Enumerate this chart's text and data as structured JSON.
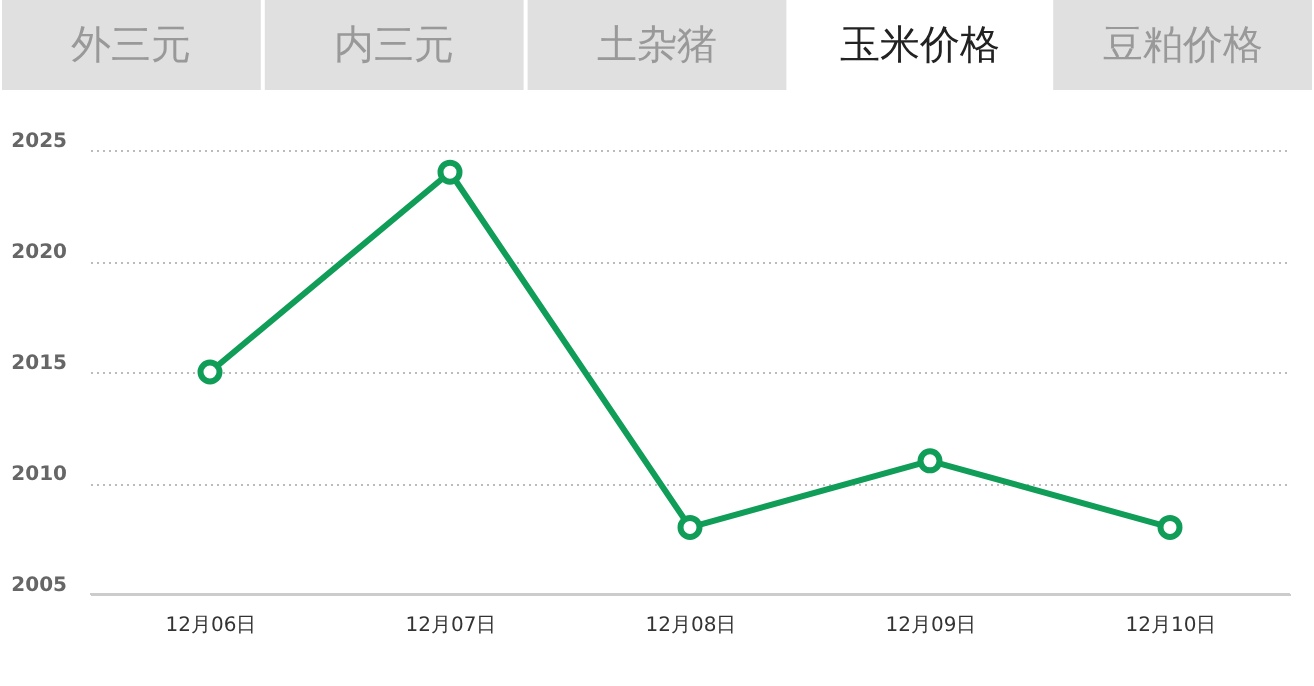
{
  "chart_data": {
    "type": "line",
    "annotations": [
      "外三元",
      "内三元",
      "土杂猪",
      "玉米价格",
      "豆粕价格"
    ],
    "categories": [
      "12月06日",
      "12月07日",
      "12月08日",
      "12月09日",
      "12月10日"
    ],
    "series": [
      {
        "color": "#0f9d58",
        "values": [
          2015,
          2024,
          2008,
          2011,
          2008
        ]
      }
    ],
    "ylim": [
      2005,
      2025
    ],
    "yticks": [
      2005,
      2010,
      2015,
      2020,
      2025
    ],
    "grid": "y",
    "marker": "circle",
    "line_style": "solid"
  }
}
